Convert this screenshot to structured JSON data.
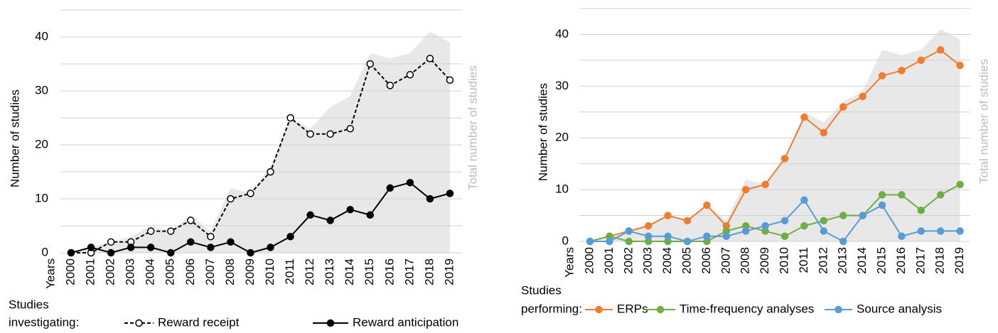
{
  "chart_data": [
    {
      "type": "line",
      "ylabel": "Number of studies",
      "xlabel": "Years",
      "categories": [
        "2000",
        "2001",
        "2002",
        "2003",
        "2004",
        "2005",
        "2006",
        "2007",
        "2008",
        "2009",
        "2010",
        "2011",
        "2012",
        "2013",
        "2014",
        "2015",
        "2016",
        "2017",
        "2018",
        "2019"
      ],
      "ylim": [
        0,
        45
      ],
      "yticks": [
        0,
        10,
        20,
        30,
        40
      ],
      "gridlines": [
        0,
        5,
        10,
        15,
        20,
        25,
        30,
        35,
        40,
        45
      ],
      "area": {
        "label": "Total number of studies",
        "color": "#e8e8e8",
        "label_color": "#bdbdbd",
        "values": [
          0,
          1,
          2,
          3,
          5,
          4,
          7,
          4,
          12,
          11,
          16,
          25,
          23,
          27,
          29,
          37,
          36,
          37,
          41,
          39
        ]
      },
      "legend_title": [
        "Studies",
        "investigating:"
      ],
      "series": [
        {
          "name": "Reward receipt",
          "color": "#000000",
          "style": "dashed",
          "marker": "open",
          "values": [
            0,
            0,
            2,
            2,
            4,
            4,
            6,
            3,
            10,
            11,
            15,
            25,
            22,
            22,
            23,
            35,
            31,
            33,
            36,
            32
          ]
        },
        {
          "name": "Reward anticipation",
          "color": "#000000",
          "style": "solid",
          "marker": "filled",
          "values": [
            0,
            1,
            0,
            1,
            1,
            0,
            2,
            1,
            2,
            0,
            1,
            3,
            7,
            6,
            8,
            7,
            12,
            13,
            10,
            11
          ]
        }
      ]
    },
    {
      "type": "line",
      "ylabel": "Number of studies",
      "xlabel": "Years",
      "categories": [
        "2000",
        "2001",
        "2002",
        "2003",
        "2004",
        "2005",
        "2006",
        "2007",
        "2008",
        "2009",
        "2010",
        "2011",
        "2012",
        "2013",
        "2014",
        "2015",
        "2016",
        "2017",
        "2018",
        "2019"
      ],
      "ylim": [
        0,
        45
      ],
      "yticks": [
        0,
        10,
        20,
        30,
        40
      ],
      "gridlines": [
        0,
        5,
        10,
        15,
        20,
        25,
        30,
        35,
        40,
        45
      ],
      "area": {
        "label": "Total number of studies",
        "color": "#e8e8e8",
        "label_color": "#bdbdbd",
        "values": [
          0,
          1,
          2,
          3,
          5,
          4,
          7,
          4,
          12,
          11,
          16,
          25,
          23,
          27,
          29,
          37,
          36,
          37,
          41,
          39
        ]
      },
      "legend_title": [
        "Studies",
        "performing:"
      ],
      "series": [
        {
          "name": "ERPs",
          "color": "#ed7d31",
          "style": "solid",
          "marker": "filled",
          "values": [
            0,
            1,
            2,
            3,
            5,
            4,
            7,
            3,
            10,
            11,
            16,
            24,
            21,
            26,
            28,
            32,
            33,
            35,
            37,
            34
          ]
        },
        {
          "name": "Time-frequency analyses",
          "color": "#70ad47",
          "style": "solid",
          "marker": "filled",
          "values": [
            0,
            1,
            0,
            0,
            0,
            0,
            0,
            2,
            3,
            2,
            1,
            3,
            4,
            5,
            5,
            9,
            9,
            6,
            9,
            11
          ]
        },
        {
          "name": "Source analysis",
          "color": "#5b9bd5",
          "style": "solid",
          "marker": "filled",
          "values": [
            0,
            0,
            2,
            1,
            1,
            0,
            1,
            1,
            2,
            3,
            4,
            8,
            2,
            0,
            5,
            7,
            1,
            2,
            2,
            2
          ]
        }
      ]
    }
  ]
}
